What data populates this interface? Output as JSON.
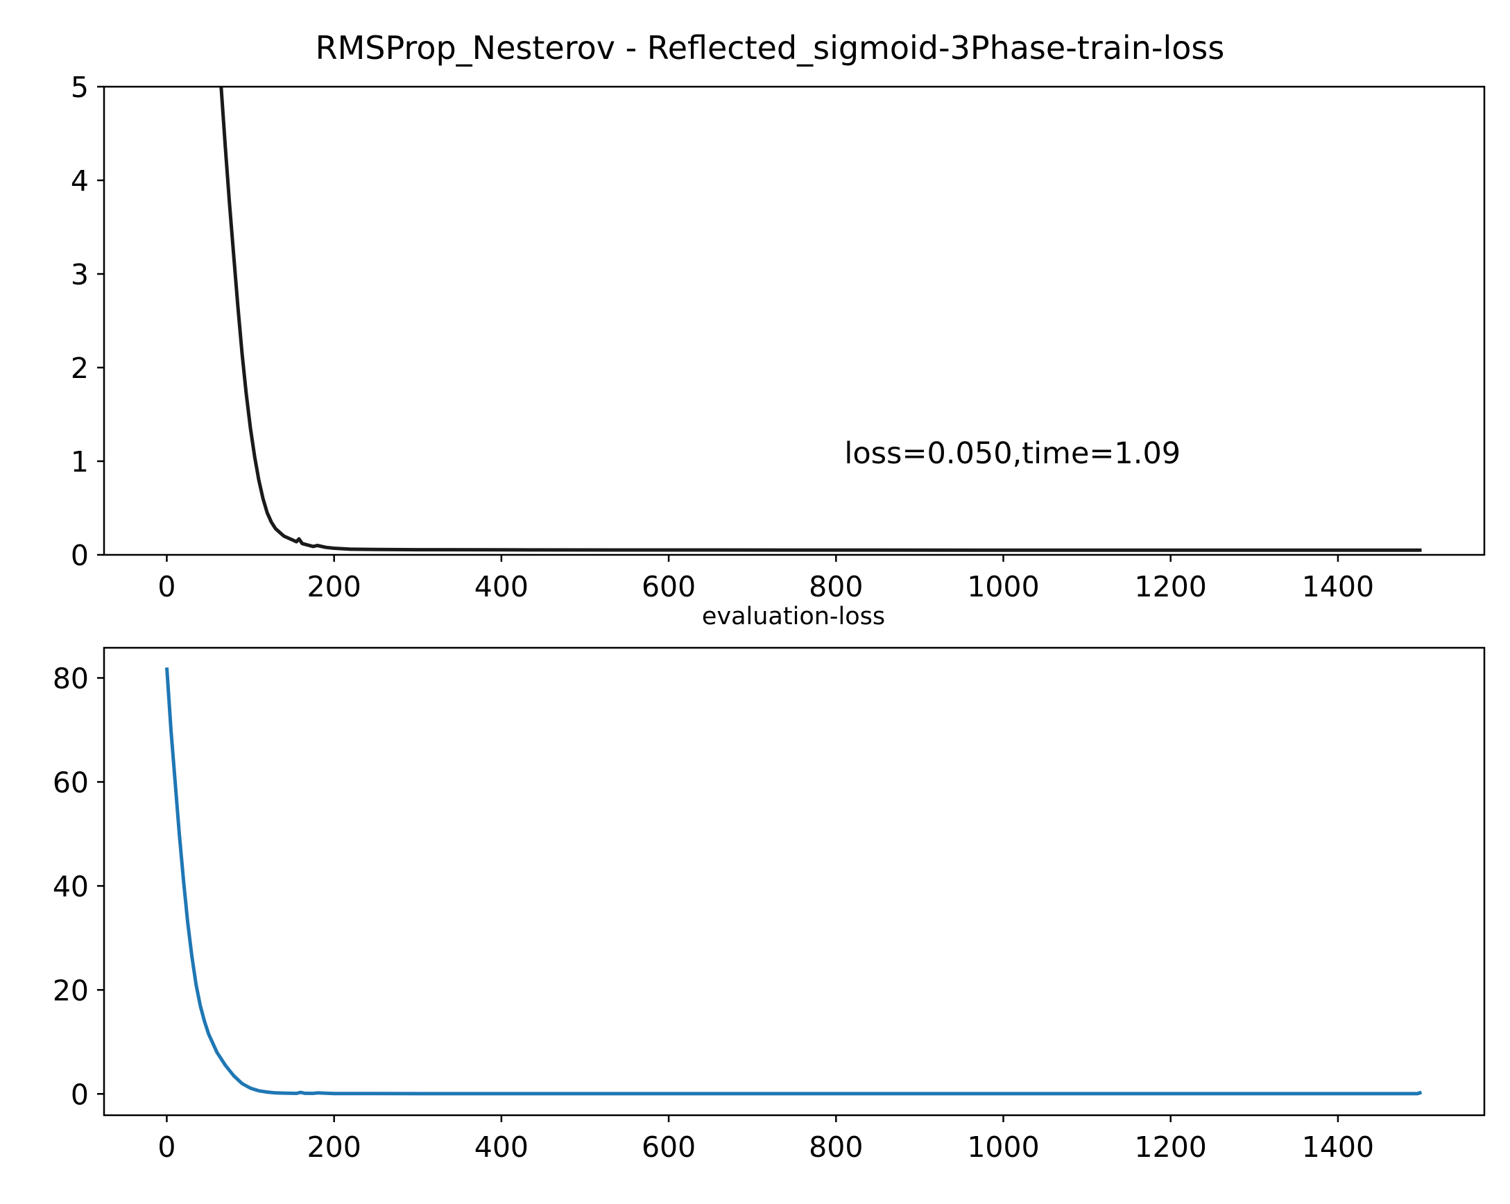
{
  "chart_data": [
    {
      "type": "line",
      "title": "RMSProp_Nesterov - Reflected_sigmoid-3Phase-train-loss",
      "xlabel": "",
      "ylabel": "",
      "xlim": [
        -75,
        1575
      ],
      "ylim": [
        0,
        5
      ],
      "x_ticks": [
        0,
        200,
        400,
        600,
        800,
        1000,
        1200,
        1400
      ],
      "y_ticks": [
        0,
        1,
        2,
        3,
        4,
        5
      ],
      "annotation": {
        "text": "loss=0.050,time=1.09",
        "x": 810,
        "y": 1.09
      },
      "grid": false,
      "series": [
        {
          "color": "#1a1a1a",
          "x": [
            65,
            70,
            75,
            80,
            85,
            90,
            95,
            100,
            105,
            110,
            115,
            120,
            125,
            130,
            140,
            150,
            155,
            158,
            162,
            166,
            175,
            180,
            190,
            200,
            220,
            250,
            300,
            400,
            600,
            800,
            1000,
            1200,
            1400,
            1500
          ],
          "y": [
            5.0,
            4.35,
            3.75,
            3.2,
            2.65,
            2.15,
            1.72,
            1.35,
            1.05,
            0.8,
            0.6,
            0.45,
            0.35,
            0.28,
            0.2,
            0.16,
            0.14,
            0.17,
            0.12,
            0.11,
            0.09,
            0.1,
            0.08,
            0.07,
            0.06,
            0.057,
            0.055,
            0.053,
            0.052,
            0.051,
            0.05,
            0.05,
            0.05,
            0.05
          ]
        }
      ]
    },
    {
      "type": "line",
      "title": "evaluation-loss",
      "xlabel": "",
      "ylabel": "",
      "xlim": [
        -75,
        1575
      ],
      "ylim": [
        -4.1,
        85.8
      ],
      "x_ticks": [
        0,
        200,
        400,
        600,
        800,
        1000,
        1200,
        1400
      ],
      "y_ticks": [
        0,
        20,
        40,
        60,
        80
      ],
      "grid": false,
      "series": [
        {
          "color": "#1f77b4",
          "x": [
            0,
            5,
            10,
            15,
            20,
            25,
            30,
            35,
            40,
            45,
            50,
            60,
            70,
            80,
            90,
            100,
            110,
            120,
            130,
            140,
            155,
            160,
            165,
            175,
            180,
            200,
            250,
            300,
            400,
            600,
            800,
            1000,
            1200,
            1400,
            1495,
            1500
          ],
          "y": [
            82,
            70,
            60,
            50,
            41,
            33,
            26.5,
            21,
            17,
            14,
            11.5,
            8,
            5.5,
            3.5,
            2.0,
            1.1,
            0.6,
            0.35,
            0.2,
            0.15,
            0.1,
            0.3,
            0.12,
            0.1,
            0.2,
            0.08,
            0.06,
            0.05,
            0.05,
            0.05,
            0.05,
            0.05,
            0.05,
            0.05,
            0.05,
            0.3
          ]
        }
      ]
    }
  ]
}
